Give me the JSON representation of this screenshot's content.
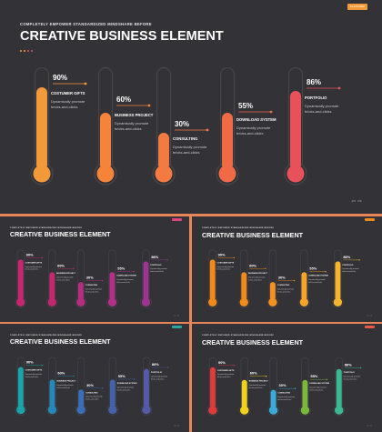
{
  "subtitle": "COMPLETELY  EMPOWER  STANDARDIZED  MINDSHARE  BEFORE",
  "title": "CREATIVE BUSINESS ELEMENT",
  "tag_label": "PLATFORM",
  "nav": "⇦ ⇨",
  "items": [
    {
      "pct": "90%",
      "value": 90,
      "label": "COSTUMER  GIFTS",
      "desc1": "Dynamically promote",
      "desc2": "bricks-and-clicks"
    },
    {
      "pct": "60%",
      "value": 60,
      "label": "BUSINESS  PROJECT",
      "desc1": "Dynamically promote",
      "desc2": "bricks-and-clicks"
    },
    {
      "pct": "30%",
      "value": 30,
      "label": "CONSULTING",
      "desc1": "Dynamically promote",
      "desc2": "bricks-and-clicks"
    },
    {
      "pct": "55%",
      "value": 55,
      "label": "DOWNLOAD SYSTEM",
      "desc1": "Dynamically promote",
      "desc2": "bricks-and-clicks"
    },
    {
      "pct": "86%",
      "value": 86,
      "label": "PORTFOLIO",
      "desc1": "Dynamically promote",
      "desc2": "bricks-and-clicks"
    }
  ],
  "variants": [
    {
      "name": "orange-red",
      "colors": [
        "#f29a3a",
        "#f5843a",
        "#f37a40",
        "#ef6a45",
        "#e8505a"
      ],
      "tag": "#f29a3a",
      "dots": [
        "#f29a3a",
        "#f29a3a",
        "#e8505a",
        "#e8505a"
      ]
    },
    {
      "name": "magenta",
      "colors": [
        "#c8266e",
        "#c4286c",
        "#b72b80",
        "#b33089",
        "#9e3392"
      ],
      "tag": "#e0457a",
      "dots": []
    },
    {
      "name": "orange",
      "colors": [
        "#f28a1a",
        "#f28a1a",
        "#f5921e",
        "#f7a52a",
        "#f6b52c"
      ],
      "tag": "#f28a1a",
      "dots": []
    },
    {
      "name": "blue-teal",
      "colors": [
        "#1aa3a8",
        "#2688b8",
        "#3a6fb8",
        "#4561a8",
        "#535aa8"
      ],
      "tag": "#2aa6a0",
      "dots": []
    },
    {
      "name": "rainbow",
      "colors": [
        "#e03a3a",
        "#f0d11c",
        "#3aaad8",
        "#7bb83a",
        "#3ab890"
      ],
      "tag": "#e85a4a",
      "dots": []
    }
  ]
}
